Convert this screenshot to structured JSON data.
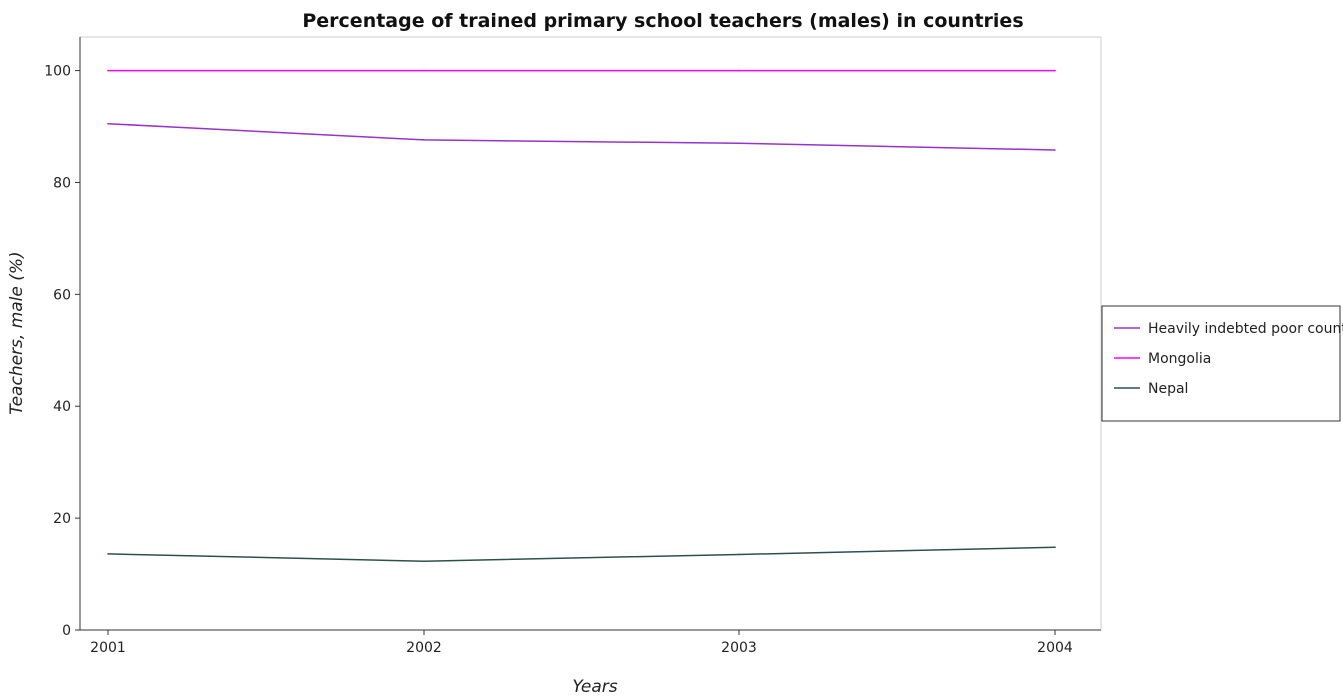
{
  "chart_data": {
    "type": "line",
    "title": "Percentage of trained primary school teachers (males) in countries",
    "xlabel": "Years",
    "ylabel": "Teachers, male (%)",
    "x": [
      "2001",
      "2002",
      "2003",
      "2004"
    ],
    "ylim": [
      0,
      106
    ],
    "yticks": [
      0,
      20,
      40,
      60,
      80,
      100
    ],
    "grid": false,
    "legend_position": "right",
    "series": [
      {
        "name": "Heavily indebted poor countries",
        "color": "#9932cc",
        "values": [
          90.5,
          87.6,
          87.0,
          85.8
        ]
      },
      {
        "name": "Mongolia",
        "color": "#ff00ff",
        "values": [
          100.0,
          100.0,
          100.0,
          100.0
        ]
      },
      {
        "name": "Nepal",
        "color": "#2f4f4f",
        "values": [
          13.6,
          12.3,
          13.5,
          14.8
        ]
      }
    ]
  }
}
